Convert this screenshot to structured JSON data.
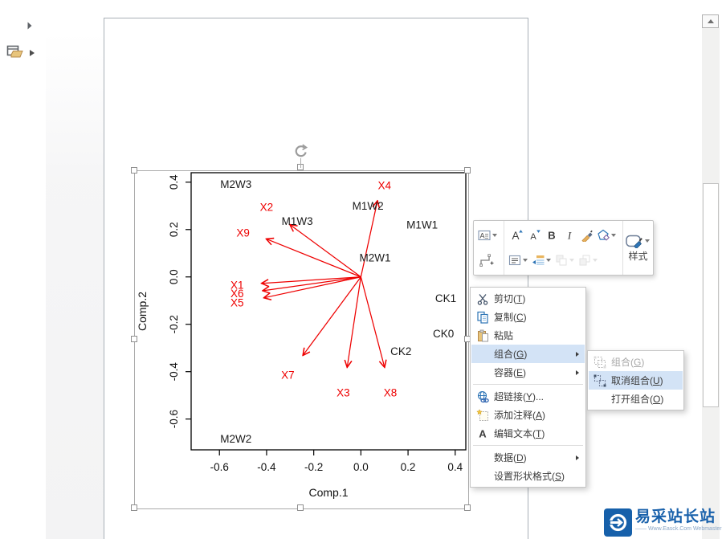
{
  "colors": {
    "highlight": "#d3e3f6",
    "arrow_red": "#ee0000",
    "watermark_blue": "#1961ab",
    "menu_text": "#3b3b3b"
  },
  "chart_data": {
    "type": "scatter",
    "subtype": "pca-biplot",
    "xlabel": "Comp.1",
    "ylabel": "Comp.2",
    "xlim": [
      -0.72,
      0.445
    ],
    "ylim": [
      -0.73,
      0.44
    ],
    "xticks": [
      "-0.6",
      "-0.4",
      "-0.2",
      "0.0",
      "0.2",
      "0.4"
    ],
    "yticks": [
      "-0.6",
      "-0.4",
      "-0.2",
      "0.0",
      "0.2",
      "0.4"
    ],
    "grid": false,
    "point_color": "#1a1a1a",
    "arrow_color": "#ee0000",
    "arrow_origin": [
      0,
      0
    ],
    "samples": [
      {
        "label": "M2W3",
        "x": -0.53,
        "y": 0.39
      },
      {
        "label": "M1W2",
        "x": 0.03,
        "y": 0.3
      },
      {
        "label": "M1W3",
        "x": -0.27,
        "y": 0.235
      },
      {
        "label": "M1W1",
        "x": 0.26,
        "y": 0.22
      },
      {
        "label": "M2W1",
        "x": 0.06,
        "y": 0.08
      },
      {
        "label": "CK1",
        "x": 0.36,
        "y": -0.09
      },
      {
        "label": "CK0",
        "x": 0.35,
        "y": -0.24
      },
      {
        "label": "CK2",
        "x": 0.17,
        "y": -0.315
      },
      {
        "label": "M2W2",
        "x": -0.53,
        "y": -0.685
      }
    ],
    "variables": [
      {
        "label": "X1",
        "tip": [
          -0.42,
          -0.027
        ],
        "label_pos": [
          -0.525,
          -0.035
        ]
      },
      {
        "label": "X2",
        "tip": [
          -0.3,
          0.22
        ],
        "label_pos": [
          -0.4,
          0.295
        ]
      },
      {
        "label": "X3",
        "tip": [
          -0.058,
          -0.38
        ],
        "label_pos": [
          -0.075,
          -0.49
        ]
      },
      {
        "label": "X4",
        "tip": [
          0.07,
          0.32
        ],
        "label_pos": [
          0.1,
          0.385
        ]
      },
      {
        "label": "X5",
        "tip": [
          -0.41,
          -0.088
        ],
        "label_pos": [
          -0.525,
          -0.11
        ]
      },
      {
        "label": "X6",
        "tip": [
          -0.415,
          -0.058
        ],
        "label_pos": [
          -0.525,
          -0.07
        ]
      },
      {
        "label": "X7",
        "tip": [
          -0.245,
          -0.33
        ],
        "label_pos": [
          -0.31,
          -0.415
        ]
      },
      {
        "label": "X8",
        "tip": [
          0.1,
          -0.38
        ],
        "label_pos": [
          0.125,
          -0.49
        ]
      },
      {
        "label": "X9",
        "tip": [
          -0.4,
          0.16
        ],
        "label_pos": [
          -0.5,
          0.185
        ]
      }
    ]
  },
  "context_menu": {
    "items": [
      {
        "id": "cut",
        "pre": "剪切(",
        "key": "T",
        "post": ")",
        "icon": "cut"
      },
      {
        "id": "copy",
        "pre": "复制(",
        "key": "C",
        "post": ")",
        "icon": "copy"
      },
      {
        "id": "paste",
        "pre": "粘贴",
        "icon": "paste"
      },
      {
        "id": "group",
        "pre": "组合(",
        "key": "G",
        "post": ")",
        "submenu": true,
        "highlighted": true
      },
      {
        "id": "container",
        "pre": "容器(",
        "key": "E",
        "post": ")",
        "submenu": true
      },
      {
        "type": "separator"
      },
      {
        "id": "hyperlink",
        "pre": "超链接(",
        "key": "Y",
        "post": ")...",
        "icon": "hyperlink"
      },
      {
        "id": "add-comment",
        "pre": "添加注释(",
        "key": "A",
        "post": ")",
        "icon": "comment"
      },
      {
        "id": "edit-text",
        "pre": "编辑文本(",
        "key": "T",
        "post": ")",
        "icon": "edit-text"
      },
      {
        "type": "separator"
      },
      {
        "id": "data",
        "pre": "数据(",
        "key": "D",
        "post": ")",
        "submenu": true
      },
      {
        "id": "format-shape",
        "pre": "设置形状格式(",
        "key": "S",
        "post": ")"
      }
    ]
  },
  "group_submenu": {
    "items": [
      {
        "id": "group",
        "pre": "组合(",
        "key": "G",
        "post": ")",
        "icon": "group",
        "disabled": true
      },
      {
        "id": "ungroup",
        "pre": "取消组合(",
        "key": "U",
        "post": ")",
        "icon": "ungroup",
        "highlighted": true
      },
      {
        "id": "open-group",
        "pre": "打开组合(",
        "key": "O",
        "post": ")"
      }
    ]
  },
  "mini_toolbar": {
    "style_label": "样式",
    "glyphs": {
      "letter": "A",
      "bold": "B",
      "italic": "I"
    },
    "row1": [
      {
        "id": "text-style",
        "icon": "text-style",
        "dropdown": true
      },
      {
        "id": "font-increase",
        "icon": "font-increase"
      },
      {
        "id": "font-decrease",
        "icon": "font-decrease"
      },
      {
        "id": "bold",
        "icon": "bold"
      },
      {
        "id": "italic",
        "icon": "italic"
      },
      {
        "id": "format-painter",
        "icon": "format-painter"
      },
      {
        "id": "shape-style",
        "icon": "shape-style",
        "dropdown": true
      }
    ],
    "row2": [
      {
        "id": "connector",
        "icon": "connector"
      },
      {
        "id": "text-align",
        "icon": "text-align",
        "dropdown": true
      },
      {
        "id": "indent",
        "icon": "indent",
        "dropdown": true
      },
      {
        "id": "bring-forward",
        "icon": "bring-forward",
        "dropdown": true,
        "disabled": true
      },
      {
        "id": "send-backward",
        "icon": "send-backward",
        "dropdown": true,
        "disabled": true
      }
    ]
  },
  "watermark": {
    "title": "易采站长站",
    "subtitle": "—— Www.Easck.Com Webmaster"
  }
}
